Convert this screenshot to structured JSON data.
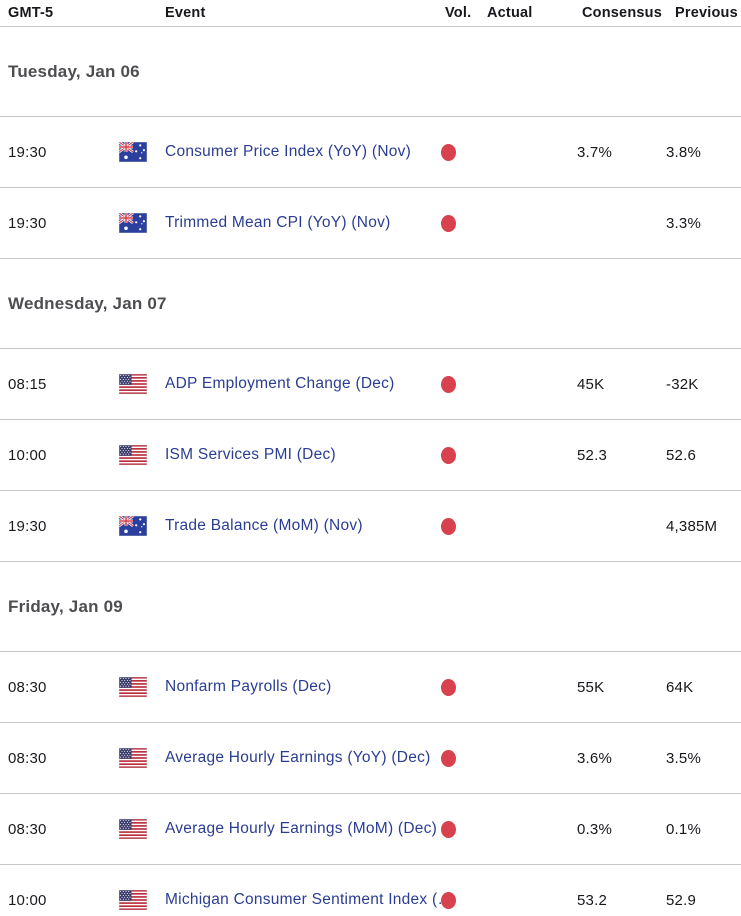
{
  "header": {
    "gmt": "GMT-5",
    "event": "Event",
    "vol": "Vol.",
    "actual": "Actual",
    "consensus": "Consensus",
    "previous": "Previous"
  },
  "colors": {
    "event_link": "#2b3d92",
    "volatility_dot": "#d8414e",
    "day_heading": "#4e4e52",
    "divider": "#c6c7ca"
  },
  "sections": [
    {
      "day": "Tuesday, Jan 06",
      "rows": [
        {
          "time": "19:30",
          "country": "AU",
          "event": "Consumer Price Index (YoY) (Nov)",
          "volatility": "high",
          "actual": "",
          "consensus": "3.7%",
          "previous": "3.8%"
        },
        {
          "time": "19:30",
          "country": "AU",
          "event": "Trimmed Mean CPI (YoY) (Nov)",
          "volatility": "high",
          "actual": "",
          "consensus": "",
          "previous": "3.3%"
        }
      ]
    },
    {
      "day": "Wednesday, Jan 07",
      "rows": [
        {
          "time": "08:15",
          "country": "US",
          "event": "ADP Employment Change (Dec)",
          "volatility": "high",
          "actual": "",
          "consensus": "45K",
          "previous": "-32K"
        },
        {
          "time": "10:00",
          "country": "US",
          "event": "ISM Services PMI (Dec)",
          "volatility": "high",
          "actual": "",
          "consensus": "52.3",
          "previous": "52.6"
        },
        {
          "time": "19:30",
          "country": "AU",
          "event": "Trade Balance (MoM) (Nov)",
          "volatility": "high",
          "actual": "",
          "consensus": "",
          "previous": "4,385M"
        }
      ]
    },
    {
      "day": "Friday, Jan 09",
      "rows": [
        {
          "time": "08:30",
          "country": "US",
          "event": "Nonfarm Payrolls (Dec)",
          "volatility": "high",
          "actual": "",
          "consensus": "55K",
          "previous": "64K"
        },
        {
          "time": "08:30",
          "country": "US",
          "event": "Average Hourly Earnings (YoY) (Dec)",
          "volatility": "high",
          "actual": "",
          "consensus": "3.6%",
          "previous": "3.5%"
        },
        {
          "time": "08:30",
          "country": "US",
          "event": "Average Hourly Earnings (MoM) (Dec)",
          "volatility": "high",
          "actual": "",
          "consensus": "0.3%",
          "previous": "0.1%"
        },
        {
          "time": "10:00",
          "country": "US",
          "event": "Michigan Consumer Sentiment Index (…",
          "volatility": "high",
          "actual": "",
          "consensus": "53.2",
          "previous": "52.9"
        }
      ]
    }
  ]
}
